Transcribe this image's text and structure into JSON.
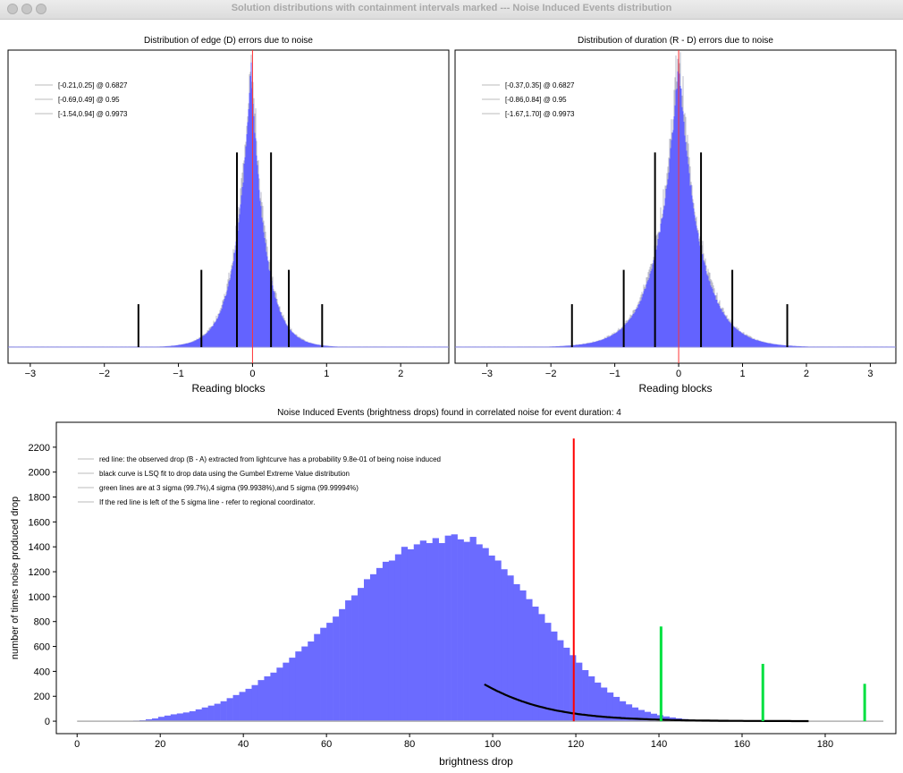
{
  "window": {
    "title": "Solution distributions with containment intervals marked --- Noise Induced Events distribution"
  },
  "chart_data": [
    {
      "type": "histogram",
      "title": "Distribution of edge (D) errors due to noise",
      "xlabel": "Reading blocks",
      "ylabel": "",
      "xlim": [
        -3.3,
        2.65
      ],
      "xticks": [
        -3,
        -2,
        -1,
        0,
        1,
        2
      ],
      "grid": false,
      "legend_position": "top-left",
      "legend": [
        "[-0.21,0.25] @ 0.6827",
        "[-0.69,0.49] @ 0.95",
        "[-1.54,0.94] @ 0.9973"
      ],
      "distribution": {
        "center": -0.02,
        "sigma_left": 0.2,
        "sigma_right": 0.19,
        "peak": 1.0,
        "color": "#5b5bff"
      },
      "observed_line": {
        "x": 0.0,
        "color": "#ff3333"
      },
      "interval_lines": [
        {
          "x": -0.21,
          "height": 0.68
        },
        {
          "x": 0.25,
          "height": 0.68
        },
        {
          "x": -0.69,
          "height": 0.27
        },
        {
          "x": 0.49,
          "height": 0.27
        },
        {
          "x": -1.54,
          "height": 0.15
        },
        {
          "x": 0.94,
          "height": 0.15
        }
      ]
    },
    {
      "type": "histogram",
      "title": "Distribution of duration (R - D) errors due to noise",
      "xlabel": "Reading blocks",
      "ylabel": "",
      "xlim": [
        -3.5,
        3.4
      ],
      "xticks": [
        -3,
        -2,
        -1,
        0,
        1,
        2,
        3
      ],
      "grid": false,
      "legend_position": "top-left",
      "legend": [
        "[-0.37,0.35] @ 0.6827",
        "[-0.86,0.84] @ 0.95",
        "[-1.67,1.70] @ 0.9973"
      ],
      "distribution": {
        "center": 0.0,
        "sigma_left": 0.33,
        "sigma_right": 0.33,
        "peak": 1.0,
        "color": "#5b5bff"
      },
      "observed_line": {
        "x": 0.0,
        "color": "#ff3333"
      },
      "interval_lines": [
        {
          "x": -0.37,
          "height": 0.68
        },
        {
          "x": 0.35,
          "height": 0.68
        },
        {
          "x": -0.86,
          "height": 0.27
        },
        {
          "x": 0.84,
          "height": 0.27
        },
        {
          "x": -1.67,
          "height": 0.15
        },
        {
          "x": 1.7,
          "height": 0.15
        }
      ]
    },
    {
      "type": "bar",
      "title": "Noise Induced Events (brightness drops) found in correlated noise for event duration: 4",
      "xlabel": "brightness drop",
      "ylabel": "number of times noise produced drop",
      "xlim": [
        -5,
        197
      ],
      "ylim": [
        -100,
        2400
      ],
      "xticks": [
        0,
        20,
        40,
        60,
        80,
        100,
        120,
        140,
        160,
        180
      ],
      "yticks": [
        0,
        200,
        400,
        600,
        800,
        1000,
        1200,
        1400,
        1600,
        1800,
        2000,
        2200
      ],
      "grid": false,
      "legend_position": "top-left",
      "legend": [
        "red line: the observed drop (B - A) extracted from lightcurve has a probability 9.8e-01 of being noise induced",
        "black curve is LSQ fit to drop data using the Gumbel Extreme Value distribution",
        "green lines are at 3 sigma (99.7%),4 sigma (99.9938%),and 5 sigma (99.99994%)",
        "If the red line is left of the 5 sigma line - refer to regional coordinator."
      ],
      "bins": {
        "start": 0,
        "width": 1.5
      },
      "values": [
        0,
        0,
        0,
        0,
        0,
        0,
        0,
        0,
        2,
        5,
        8,
        15,
        22,
        35,
        45,
        55,
        62,
        70,
        80,
        95,
        110,
        125,
        140,
        160,
        185,
        210,
        235,
        260,
        290,
        330,
        360,
        390,
        430,
        470,
        510,
        560,
        600,
        640,
        700,
        750,
        790,
        840,
        900,
        970,
        1010,
        1070,
        1140,
        1180,
        1230,
        1280,
        1290,
        1340,
        1400,
        1380,
        1420,
        1450,
        1430,
        1470,
        1430,
        1490,
        1500,
        1460,
        1440,
        1480,
        1420,
        1390,
        1330,
        1290,
        1220,
        1170,
        1100,
        1050,
        980,
        920,
        860,
        790,
        720,
        650,
        590,
        530,
        470,
        410,
        360,
        310,
        270,
        230,
        195,
        160,
        135,
        110,
        90,
        75,
        60,
        48,
        38,
        30,
        23,
        17,
        12,
        9,
        6,
        4,
        3,
        2,
        1,
        1,
        0,
        0,
        0,
        0,
        0,
        0,
        0,
        0,
        0,
        0,
        0,
        0,
        0,
        0,
        0,
        0
      ],
      "bar_color": "#6b6bff",
      "fit_curve": {
        "from": 98,
        "to": 176,
        "peak": 80,
        "scale": 12.3,
        "amplitude": 1610,
        "color": "#000000"
      },
      "red_line": {
        "x": 119.5,
        "y": 2270,
        "color": "#ff0000"
      },
      "green_lines": [
        {
          "x": 140.5,
          "y": 760
        },
        {
          "x": 165,
          "y": 460
        },
        {
          "x": 189.5,
          "y": 300
        }
      ],
      "green_color": "#00e040"
    }
  ]
}
